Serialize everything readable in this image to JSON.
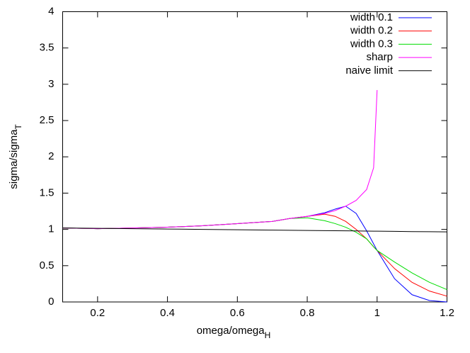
{
  "chart_data": {
    "type": "line",
    "x_label": "omega/omega",
    "x_label_subscript": "H",
    "y_label": "sigma/sigma",
    "y_label_subscript": "T",
    "x": [
      0.1,
      0.2,
      0.3,
      0.4,
      0.5,
      0.6,
      0.7,
      0.75,
      0.8,
      0.85,
      0.88,
      0.91,
      0.94,
      0.97,
      0.99,
      1.0,
      1.05,
      1.1,
      1.15,
      1.2
    ],
    "series": [
      {
        "name": "width 0.1",
        "color": "#0000ff",
        "values": [
          1.02,
          1.01,
          1.02,
          1.03,
          1.05,
          1.08,
          1.11,
          1.15,
          1.18,
          1.23,
          1.28,
          1.32,
          1.22,
          0.98,
          0.8,
          0.71,
          0.32,
          0.1,
          0.02,
          0.0
        ]
      },
      {
        "name": "width 0.2",
        "color": "#ff0000",
        "values": [
          1.02,
          1.01,
          1.02,
          1.03,
          1.05,
          1.08,
          1.11,
          1.15,
          1.18,
          1.21,
          1.18,
          1.11,
          1.0,
          0.87,
          0.76,
          0.71,
          0.46,
          0.27,
          0.15,
          0.08
        ]
      },
      {
        "name": "width 0.3",
        "color": "#00dd00",
        "values": [
          1.02,
          1.01,
          1.02,
          1.03,
          1.05,
          1.08,
          1.11,
          1.15,
          1.16,
          1.12,
          1.08,
          1.03,
          0.96,
          0.87,
          0.76,
          0.71,
          0.55,
          0.4,
          0.27,
          0.17
        ]
      },
      {
        "name": "sharp",
        "color": "#ff00ff",
        "values": [
          1.02,
          1.01,
          1.02,
          1.03,
          1.05,
          1.08,
          1.11,
          1.15,
          1.18,
          1.22,
          1.26,
          1.32,
          1.4,
          1.55,
          1.85,
          2.92,
          null,
          null,
          null,
          null
        ]
      },
      {
        "name": "naive limit",
        "color": "#000000",
        "values": [
          1.02,
          1.015,
          1.01,
          1.005,
          1.0,
          0.995,
          0.99,
          0.988,
          0.985,
          0.983,
          0.982,
          0.98,
          0.979,
          0.977,
          0.976,
          0.975,
          0.973,
          0.97,
          0.968,
          0.966
        ]
      }
    ],
    "xlim": [
      0.1,
      1.2
    ],
    "xticks": [
      0.2,
      0.4,
      0.6,
      0.8,
      1,
      1.2
    ],
    "ylim": [
      0,
      4
    ],
    "yticks": [
      0,
      0.5,
      1,
      1.5,
      2,
      2.5,
      3,
      3.5,
      4
    ],
    "legend": "top-right"
  }
}
